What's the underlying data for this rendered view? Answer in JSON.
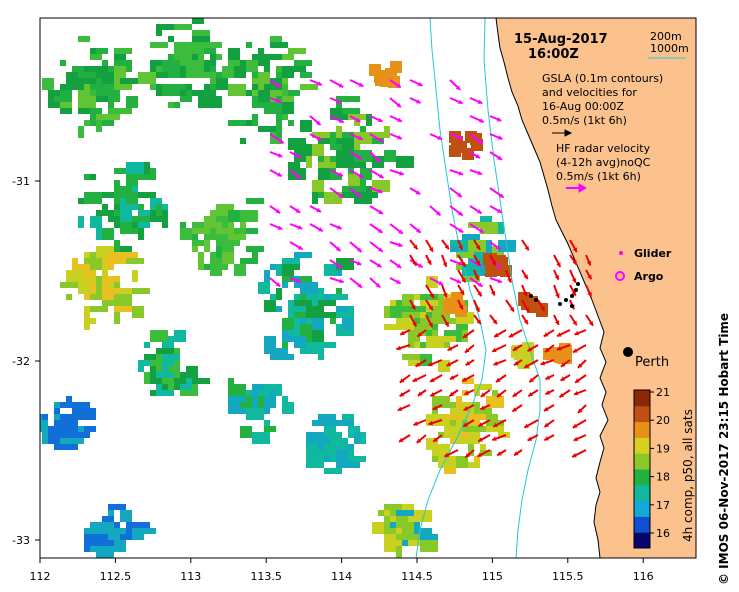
{
  "date": "15-Aug-2017",
  "time": "16:00Z",
  "isobaths": {
    "shallow": "200m",
    "deep": "1000m",
    "color": "#22c8d8"
  },
  "gsla": {
    "line1": "GSLA (0.1m contours)",
    "line2": "and velocities for",
    "line3": "16-Aug 00:00Z",
    "scale": "0.5m/s (1kt 6h)"
  },
  "hf_radar": {
    "line1": "HF radar velocity",
    "line2": "(4-12h avg)noQC",
    "scale": "0.5m/s (1kt 6h)"
  },
  "markers": {
    "glider": "Glider",
    "argo": "Argo",
    "color": "#ff00ff"
  },
  "city": "Perth",
  "colorbar": {
    "label": "4h comp, p50, all sats",
    "ticks": [
      "16",
      "17",
      "18",
      "19",
      "20",
      "21"
    ],
    "colors": [
      "#06066e",
      "#1050d0",
      "#12a8d8",
      "#10b8a0",
      "#22b040",
      "#88c828",
      "#d8d020",
      "#e89018",
      "#c05010",
      "#8c2808"
    ]
  },
  "axes": {
    "x_ticks": [
      "112",
      "112.5",
      "113",
      "113.5",
      "114",
      "114.5",
      "115",
      "115.5",
      "116"
    ],
    "y_ticks": [
      "-31",
      "-32",
      "-33"
    ]
  },
  "credit": "© IMOS 06-Nov-2017 23:15 Hobart Time",
  "colors": {
    "land": "#fcc28e",
    "vector_gsla": "#ff00ff",
    "vector_radar": "#ee0000"
  }
}
